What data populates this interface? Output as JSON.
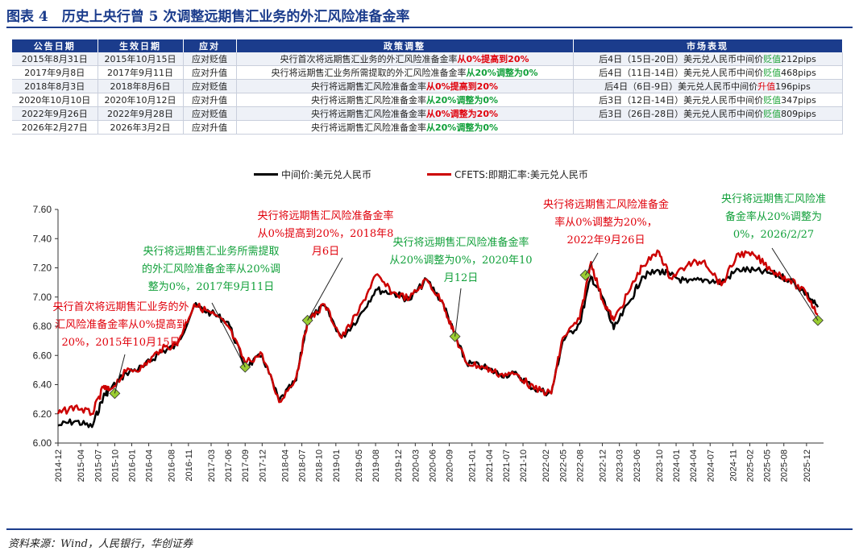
{
  "title": "图表 4　历史上央行曾 5 次调整远期售汇业务的外汇风险准备金率",
  "table": {
    "headers": [
      "公告日期",
      "生效日期",
      "应对",
      "政策调整",
      "市场表现"
    ],
    "rows": [
      {
        "announce": "2015年8月31日",
        "effective": "2015年10月15日",
        "response": "应对贬值",
        "policy_pre": "央行首次将远期售汇业务的外汇风险准备金率",
        "policy_hl": "从0%提高到20%",
        "policy_color": "red",
        "market_pre": "后4日（15日-20日）美元兑人民币中间价",
        "market_hl": "贬值",
        "market_post": "212pips",
        "market_color": "green"
      },
      {
        "announce": "2017年9月8日",
        "effective": "2017年9月11日",
        "response": "应对升值",
        "policy_pre": "央行将远期售汇业务所需提取的外汇风险准备金率",
        "policy_hl": "从20%调整为0%",
        "policy_color": "green",
        "market_pre": "后4日（11日-14日）美元兑人民币中间价",
        "market_hl": "贬值",
        "market_post": "468pips",
        "market_color": "green"
      },
      {
        "announce": "2018年8月3日",
        "effective": "2018年8月6日",
        "response": "应对贬值",
        "policy_pre": "央行将远期售汇风险准备金率",
        "policy_hl": "从0%提高到20%",
        "policy_color": "red",
        "market_pre": "后4日（6日-9日）美元兑人民币中间价",
        "market_hl": "升值",
        "market_post": "196pips",
        "market_color": "red"
      },
      {
        "announce": "2020年10月10日",
        "effective": "2020年10月12日",
        "response": "应对升值",
        "policy_pre": "央行将远期售汇风险准备金率",
        "policy_hl": "从20%调整为0%",
        "policy_color": "green",
        "market_pre": "后3日（12日-14日）美元兑人民币中间价",
        "market_hl": "贬值",
        "market_post": "347pips",
        "market_color": "green"
      },
      {
        "announce": "2022年9月26日",
        "effective": "2022年9月28日",
        "response": "应对贬值",
        "policy_pre": "央行将远期售汇风险准备金率",
        "policy_hl": "从0%调整为20%",
        "policy_color": "red",
        "market_pre": "后3日（26日-28日）美元兑人民币中间价",
        "market_hl": "贬值",
        "market_post": "809pips",
        "market_color": "green"
      },
      {
        "announce": "2026年2月27日",
        "effective": "2026年3月2日",
        "response": "应对升值",
        "policy_pre": "央行将远期售汇风险准备金率",
        "policy_hl": "从20%调整为0%",
        "policy_color": "green",
        "market_pre": "",
        "market_hl": "",
        "market_post": "",
        "market_color": "green"
      }
    ]
  },
  "legend": {
    "series1": "中间价:美元兑人民币",
    "series2": "CFETS:即期汇率:美元兑人民币"
  },
  "annotations": [
    {
      "lines": [
        "央行首次将远期售汇业务的外",
        "汇风险准备金率从0%提高到",
        "20%，2015年10月15日"
      ],
      "color": "red"
    },
    {
      "lines": [
        "央行将远期售汇业务所需提取",
        "的外汇风险准备金率从20%调",
        "整为0%，2017年9月11日"
      ],
      "color": "green"
    },
    {
      "lines": [
        "央行将远期售汇风险准备金率",
        "从0%提高到20%，2018年8",
        "月6日"
      ],
      "color": "red"
    },
    {
      "lines": [
        "央行将远期售汇风险准备金率",
        "从20%调整为0%，2020年10",
        "月12日"
      ],
      "color": "green"
    },
    {
      "lines": [
        "央行将远期售汇风险准备金",
        "率从0%调整为20%，",
        "2022年9月26日"
      ],
      "color": "red"
    },
    {
      "lines": [
        "央行将远期售汇风险准",
        "备金率从20%调整为",
        "0%，2026/2/27"
      ],
      "color": "green"
    }
  ],
  "source": "资料来源：Wind，人民银行，华创证券",
  "colors": {
    "navy": "#1b3c8c",
    "series1": "#000000",
    "series2": "#cc0000",
    "marker": "#9acd32"
  },
  "chart_data": {
    "type": "line",
    "title": "",
    "xlabel": "",
    "ylabel": "",
    "ylim": [
      6.0,
      7.6
    ],
    "yticks": [
      "6.00",
      "6.20",
      "6.40",
      "6.60",
      "6.80",
      "7.00",
      "7.20",
      "7.40",
      "7.60"
    ],
    "xticks": [
      "2014-12",
      "2015-04",
      "2015-07",
      "2015-10",
      "2016-01",
      "2016-04",
      "2016-08",
      "2016-11",
      "2017-03",
      "2017-06",
      "2017-09",
      "2017-12",
      "2018-04",
      "2018-07",
      "2018-10",
      "2019-01",
      "2019-05",
      "2019-08",
      "2019-12",
      "2020-03",
      "2020-06",
      "2020-09",
      "2021-01",
      "2021-04",
      "2021-07",
      "2021-10",
      "2022-02",
      "2022-05",
      "2022-08",
      "2022-12",
      "2023-03",
      "2023-06",
      "2023-10",
      "2024-01",
      "2024-04",
      "2024-07",
      "2024-11",
      "2025-02",
      "2025-05",
      "2025-08",
      "2025-12"
    ],
    "series": [
      {
        "name": "中间价:美元兑人民币",
        "x": [
          "2014-12",
          "2015-03",
          "2015-06",
          "2015-08",
          "2015-09",
          "2015-12",
          "2016-03",
          "2016-06",
          "2016-09",
          "2016-12",
          "2017-03",
          "2017-06",
          "2017-09",
          "2017-12",
          "2018-03",
          "2018-06",
          "2018-08",
          "2018-11",
          "2019-02",
          "2019-05",
          "2019-08",
          "2019-11",
          "2020-02",
          "2020-05",
          "2020-08",
          "2020-10",
          "2020-12",
          "2021-03",
          "2021-06",
          "2021-09",
          "2021-12",
          "2022-03",
          "2022-05",
          "2022-08",
          "2022-10",
          "2022-12",
          "2023-02",
          "2023-05",
          "2023-07",
          "2023-10",
          "2023-12",
          "2024-03",
          "2024-06",
          "2024-09",
          "2024-12",
          "2025-03",
          "2025-06",
          "2025-09",
          "2025-12",
          "2026-02"
        ],
        "y": [
          6.12,
          6.15,
          6.11,
          6.32,
          6.36,
          6.48,
          6.52,
          6.62,
          6.67,
          6.94,
          6.89,
          6.83,
          6.52,
          6.6,
          6.29,
          6.43,
          6.84,
          6.94,
          6.72,
          6.86,
          7.05,
          7.03,
          6.98,
          7.12,
          6.95,
          6.73,
          6.55,
          6.52,
          6.47,
          6.47,
          6.37,
          6.34,
          6.7,
          6.82,
          7.14,
          7.0,
          6.78,
          6.98,
          7.14,
          7.18,
          7.15,
          7.1,
          7.12,
          7.1,
          7.19,
          7.18,
          7.16,
          7.12,
          7.02,
          6.93
        ]
      },
      {
        "name": "CFETS:即期汇率:美元兑人民币",
        "x": [
          "2014-12",
          "2015-03",
          "2015-06",
          "2015-08",
          "2015-09",
          "2015-12",
          "2016-03",
          "2016-06",
          "2016-09",
          "2016-12",
          "2017-03",
          "2017-06",
          "2017-09",
          "2017-12",
          "2018-03",
          "2018-06",
          "2018-08",
          "2018-11",
          "2019-02",
          "2019-05",
          "2019-08",
          "2019-11",
          "2020-02",
          "2020-05",
          "2020-08",
          "2020-10",
          "2020-12",
          "2021-03",
          "2021-06",
          "2021-09",
          "2021-12",
          "2022-03",
          "2022-05",
          "2022-08",
          "2022-10",
          "2022-12",
          "2023-02",
          "2023-05",
          "2023-07",
          "2023-10",
          "2023-12",
          "2024-03",
          "2024-06",
          "2024-09",
          "2024-12",
          "2025-03",
          "2025-06",
          "2025-09",
          "2025-12",
          "2026-02"
        ],
        "y": [
          6.2,
          6.25,
          6.2,
          6.38,
          6.36,
          6.49,
          6.52,
          6.64,
          6.68,
          6.95,
          6.89,
          6.8,
          6.55,
          6.61,
          6.28,
          6.45,
          6.83,
          6.95,
          6.72,
          6.9,
          7.15,
          7.03,
          6.99,
          7.12,
          6.95,
          6.73,
          6.55,
          6.52,
          6.47,
          6.47,
          6.37,
          6.34,
          6.72,
          6.85,
          7.24,
          6.98,
          6.84,
          7.06,
          7.21,
          7.31,
          7.13,
          7.22,
          7.25,
          7.08,
          7.3,
          7.28,
          7.18,
          7.12,
          7.02,
          6.88
        ]
      }
    ],
    "markers": [
      {
        "x": "2015-10",
        "y": 6.34
      },
      {
        "x": "2017-09",
        "y": 6.52
      },
      {
        "x": "2018-08",
        "y": 6.84
      },
      {
        "x": "2020-10",
        "y": 6.73
      },
      {
        "x": "2022-09",
        "y": 7.15
      },
      {
        "x": "2026-02",
        "y": 6.84
      }
    ]
  }
}
